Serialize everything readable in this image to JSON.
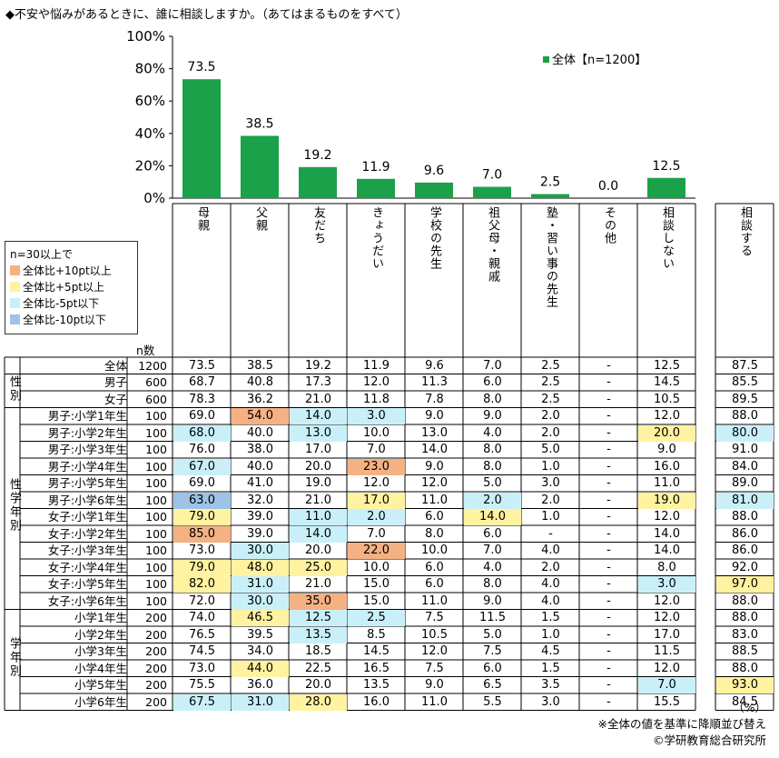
{
  "title": "◆不安や悩みがあるときに、誰に相談しますか。（あてはまるものをすべて）",
  "chart_data": {
    "type": "bar",
    "series_name": "全体【n=1200】",
    "categories": [
      "母親",
      "父親",
      "友だち",
      "きょうだい",
      "学校の先生",
      "祖父母・親戚",
      "塾・習い事の先生",
      "その他",
      "相談しない"
    ],
    "values": [
      73.5,
      38.5,
      19.2,
      11.9,
      9.6,
      7.0,
      2.5,
      0.0,
      12.5
    ],
    "value_labels": [
      "73.5",
      "38.5",
      "19.2",
      "11.9",
      "9.6",
      "7.0",
      "2.5",
      "0.0",
      "12.5"
    ],
    "yticks": [
      "100%",
      "80%",
      "60%",
      "40%",
      "20%",
      "0%"
    ],
    "ylim": [
      0,
      100
    ],
    "bar_color": "#1aa14a",
    "legend_position": "top-right"
  },
  "extra_column": "相談する",
  "legend": {
    "title": "n=30以上で",
    "items": [
      {
        "label": "全体比+10pt以上",
        "color": "#f4b183"
      },
      {
        "label": "全体比+5pt以上",
        "color": "#fff2a0"
      },
      {
        "label": "全体比-5pt以下",
        "color": "#c9f0f8"
      },
      {
        "label": "全体比-10pt以下",
        "color": "#9dc3e6"
      }
    ]
  },
  "n_header": "n数",
  "groups": [
    {
      "label": "性別",
      "start": 1,
      "end": 2
    },
    {
      "label": "性学年別",
      "start": 3,
      "end": 14
    },
    {
      "label": "学年別",
      "start": 15,
      "end": 20
    }
  ],
  "rows": [
    {
      "label": "全体",
      "n": "1200",
      "values": [
        "73.5",
        "38.5",
        "19.2",
        "11.9",
        "9.6",
        "7.0",
        "2.5",
        "-",
        "12.5",
        "87.5"
      ],
      "hl": [
        0,
        0,
        0,
        0,
        0,
        0,
        0,
        0,
        0,
        0
      ]
    },
    {
      "label": "男子",
      "n": "600",
      "values": [
        "68.7",
        "40.8",
        "17.3",
        "12.0",
        "11.3",
        "6.0",
        "2.5",
        "-",
        "14.5",
        "85.5"
      ],
      "hl": [
        0,
        0,
        0,
        0,
        0,
        0,
        0,
        0,
        0,
        0
      ]
    },
    {
      "label": "女子",
      "n": "600",
      "values": [
        "78.3",
        "36.2",
        "21.0",
        "11.8",
        "7.8",
        "8.0",
        "2.5",
        "-",
        "10.5",
        "89.5"
      ],
      "hl": [
        0,
        0,
        0,
        0,
        0,
        0,
        0,
        0,
        0,
        0
      ]
    },
    {
      "label": "男子:小学1年生",
      "n": "100",
      "values": [
        "69.0",
        "54.0",
        "14.0",
        "3.0",
        "9.0",
        "9.0",
        "2.0",
        "-",
        "12.0",
        "88.0"
      ],
      "hl": [
        0,
        1,
        3,
        3,
        0,
        0,
        0,
        0,
        0,
        0
      ]
    },
    {
      "label": "男子:小学2年生",
      "n": "100",
      "values": [
        "68.0",
        "40.0",
        "13.0",
        "10.0",
        "13.0",
        "4.0",
        "2.0",
        "-",
        "20.0",
        "80.0"
      ],
      "hl": [
        3,
        0,
        3,
        0,
        0,
        0,
        0,
        0,
        2,
        3
      ]
    },
    {
      "label": "男子:小学3年生",
      "n": "100",
      "values": [
        "76.0",
        "38.0",
        "17.0",
        "7.0",
        "14.0",
        "8.0",
        "5.0",
        "-",
        "9.0",
        "91.0"
      ],
      "hl": [
        0,
        0,
        0,
        0,
        0,
        0,
        0,
        0,
        0,
        0
      ]
    },
    {
      "label": "男子:小学4年生",
      "n": "100",
      "values": [
        "67.0",
        "40.0",
        "20.0",
        "23.0",
        "9.0",
        "8.0",
        "1.0",
        "-",
        "16.0",
        "84.0"
      ],
      "hl": [
        3,
        0,
        0,
        1,
        0,
        0,
        0,
        0,
        0,
        0
      ]
    },
    {
      "label": "男子:小学5年生",
      "n": "100",
      "values": [
        "69.0",
        "41.0",
        "19.0",
        "12.0",
        "12.0",
        "5.0",
        "3.0",
        "-",
        "11.0",
        "89.0"
      ],
      "hl": [
        0,
        0,
        0,
        0,
        0,
        0,
        0,
        0,
        0,
        0
      ]
    },
    {
      "label": "男子:小学6年生",
      "n": "100",
      "values": [
        "63.0",
        "32.0",
        "21.0",
        "17.0",
        "11.0",
        "2.0",
        "2.0",
        "-",
        "19.0",
        "81.0"
      ],
      "hl": [
        4,
        0,
        0,
        2,
        0,
        3,
        0,
        0,
        2,
        3
      ]
    },
    {
      "label": "女子:小学1年生",
      "n": "100",
      "values": [
        "79.0",
        "39.0",
        "11.0",
        "2.0",
        "6.0",
        "14.0",
        "1.0",
        "-",
        "12.0",
        "88.0"
      ],
      "hl": [
        2,
        0,
        3,
        3,
        0,
        2,
        0,
        0,
        0,
        0
      ]
    },
    {
      "label": "女子:小学2年生",
      "n": "100",
      "values": [
        "85.0",
        "39.0",
        "14.0",
        "7.0",
        "8.0",
        "6.0",
        "-",
        "-",
        "14.0",
        "86.0"
      ],
      "hl": [
        1,
        0,
        3,
        0,
        0,
        0,
        0,
        0,
        0,
        0
      ]
    },
    {
      "label": "女子:小学3年生",
      "n": "100",
      "values": [
        "73.0",
        "30.0",
        "20.0",
        "22.0",
        "10.0",
        "7.0",
        "4.0",
        "-",
        "14.0",
        "86.0"
      ],
      "hl": [
        0,
        3,
        0,
        1,
        0,
        0,
        0,
        0,
        0,
        0
      ]
    },
    {
      "label": "女子:小学4年生",
      "n": "100",
      "values": [
        "79.0",
        "48.0",
        "25.0",
        "10.0",
        "6.0",
        "4.0",
        "2.0",
        "-",
        "8.0",
        "92.0"
      ],
      "hl": [
        2,
        2,
        2,
        0,
        0,
        0,
        0,
        0,
        0,
        0
      ]
    },
    {
      "label": "女子:小学5年生",
      "n": "100",
      "values": [
        "82.0",
        "31.0",
        "21.0",
        "15.0",
        "6.0",
        "8.0",
        "4.0",
        "-",
        "3.0",
        "97.0"
      ],
      "hl": [
        2,
        3,
        0,
        0,
        0,
        0,
        0,
        0,
        3,
        2
      ]
    },
    {
      "label": "女子:小学6年生",
      "n": "100",
      "values": [
        "72.0",
        "30.0",
        "35.0",
        "15.0",
        "11.0",
        "9.0",
        "4.0",
        "-",
        "12.0",
        "88.0"
      ],
      "hl": [
        0,
        3,
        1,
        0,
        0,
        0,
        0,
        0,
        0,
        0
      ]
    },
    {
      "label": "小学1年生",
      "n": "200",
      "values": [
        "74.0",
        "46.5",
        "12.5",
        "2.5",
        "7.5",
        "11.5",
        "1.5",
        "-",
        "12.0",
        "88.0"
      ],
      "hl": [
        0,
        2,
        3,
        3,
        0,
        0,
        0,
        0,
        0,
        0
      ]
    },
    {
      "label": "小学2年生",
      "n": "200",
      "values": [
        "76.5",
        "39.5",
        "13.5",
        "8.5",
        "10.5",
        "5.0",
        "1.0",
        "-",
        "17.0",
        "83.0"
      ],
      "hl": [
        0,
        0,
        3,
        0,
        0,
        0,
        0,
        0,
        0,
        0
      ]
    },
    {
      "label": "小学3年生",
      "n": "200",
      "values": [
        "74.5",
        "34.0",
        "18.5",
        "14.5",
        "12.0",
        "7.5",
        "4.5",
        "-",
        "11.5",
        "88.5"
      ],
      "hl": [
        0,
        0,
        0,
        0,
        0,
        0,
        0,
        0,
        0,
        0
      ]
    },
    {
      "label": "小学4年生",
      "n": "200",
      "values": [
        "73.0",
        "44.0",
        "22.5",
        "16.5",
        "7.5",
        "6.0",
        "1.5",
        "-",
        "12.0",
        "88.0"
      ],
      "hl": [
        0,
        2,
        0,
        0,
        0,
        0,
        0,
        0,
        0,
        0
      ]
    },
    {
      "label": "小学5年生",
      "n": "200",
      "values": [
        "75.5",
        "36.0",
        "20.0",
        "13.5",
        "9.0",
        "6.5",
        "3.5",
        "-",
        "7.0",
        "93.0"
      ],
      "hl": [
        0,
        0,
        0,
        0,
        0,
        0,
        0,
        0,
        3,
        2
      ]
    },
    {
      "label": "小学6年生",
      "n": "200",
      "values": [
        "67.5",
        "31.0",
        "28.0",
        "16.0",
        "11.0",
        "5.5",
        "3.0",
        "-",
        "15.5",
        "84.5"
      ],
      "hl": [
        3,
        3,
        2,
        0,
        0,
        0,
        0,
        0,
        0,
        0
      ]
    }
  ],
  "unit_note": "（%）",
  "sort_note": "※全体の値を基準に降順並び替え",
  "credit": "©学研教育総合研究所"
}
